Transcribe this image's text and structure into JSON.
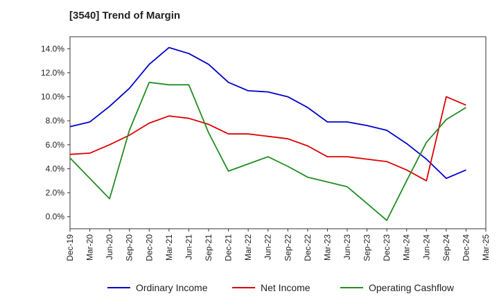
{
  "chart_data": {
    "type": "line",
    "title": "[3540]  Trend of Margin",
    "xlabel": "",
    "ylabel": "",
    "categories": [
      "Dec-19",
      "Mar-20",
      "Jun-20",
      "Sep-20",
      "Dec-20",
      "Mar-21",
      "Jun-21",
      "Sep-21",
      "Dec-21",
      "Mar-22",
      "Jun-22",
      "Sep-22",
      "Dec-22",
      "Mar-23",
      "Jun-23",
      "Sep-23",
      "Dec-23",
      "Mar-24",
      "Jun-24",
      "Sep-24",
      "Dec-24",
      "Mar-25"
    ],
    "ylim": [
      -1.0,
      15.0
    ],
    "yticks": [
      0,
      2,
      4,
      6,
      8,
      10,
      12,
      14
    ],
    "ytick_labels": [
      "0.0%",
      "2.0%",
      "4.0%",
      "6.0%",
      "8.0%",
      "10.0%",
      "12.0%",
      "14.0%"
    ],
    "grid": true,
    "legend_position": "bottom",
    "series": [
      {
        "name": "Ordinary Income",
        "color": "#0000cc",
        "values": [
          7.5,
          7.9,
          9.2,
          10.7,
          12.7,
          14.1,
          13.6,
          12.7,
          11.2,
          10.5,
          10.4,
          10.0,
          9.1,
          7.9,
          7.9,
          7.6,
          7.2,
          6.1,
          4.8,
          3.2,
          3.9,
          null
        ]
      },
      {
        "name": "Net Income",
        "color": "#dd0000",
        "values": [
          5.2,
          5.3,
          6.0,
          6.8,
          7.8,
          8.4,
          8.2,
          7.7,
          6.9,
          6.9,
          6.7,
          6.5,
          5.9,
          5.0,
          5.0,
          4.8,
          4.6,
          3.9,
          3.0,
          10.0,
          9.3,
          null
        ]
      },
      {
        "name": "Operating Cashflow",
        "color": "#228b22",
        "values": [
          4.9,
          3.2,
          1.5,
          7.2,
          11.2,
          11.0,
          11.0,
          7.0,
          3.8,
          4.4,
          5.0,
          4.2,
          3.3,
          2.9,
          2.5,
          1.1,
          -0.3,
          3.0,
          6.2,
          8.1,
          9.1,
          null
        ]
      }
    ]
  }
}
